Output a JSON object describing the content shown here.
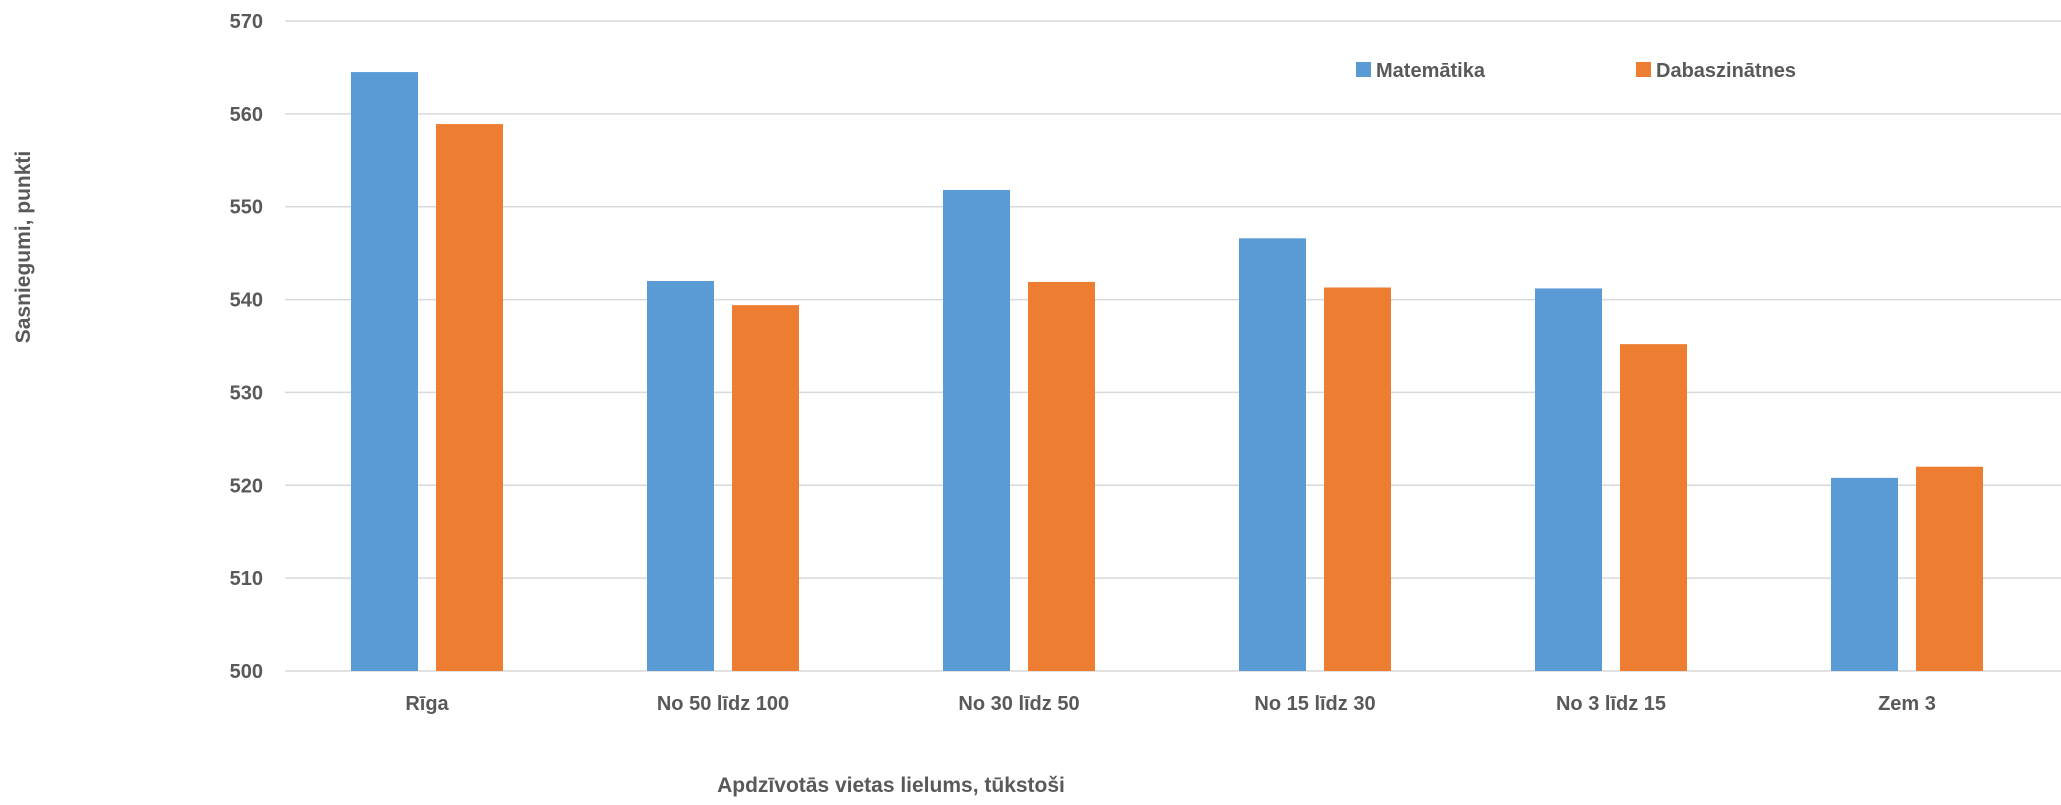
{
  "chart_data": {
    "type": "bar",
    "xlabel": "Apdzīvotās vietas lielums, tūkstoši",
    "ylabel": "Sasniegumi, punkti",
    "ylim": [
      500,
      570
    ],
    "yticks": [
      500,
      510,
      520,
      530,
      540,
      550,
      560,
      570
    ],
    "grid": true,
    "legend_position": "top-right",
    "categories": [
      "Rīga",
      "No 50 līdz 100",
      "No 30 līdz 50",
      "No 15 līdz 30",
      "No 3 līdz 15",
      "Zem 3"
    ],
    "series": [
      {
        "name": "Matemātika",
        "color": "#5b9bd5",
        "values": [
          564.5,
          542,
          551.8,
          546.6,
          541.2,
          520.8
        ]
      },
      {
        "name": "Dabaszinātnes",
        "color": "#ed7d31",
        "values": [
          558.9,
          539.4,
          541.9,
          541.3,
          535.2,
          522
        ]
      }
    ]
  }
}
